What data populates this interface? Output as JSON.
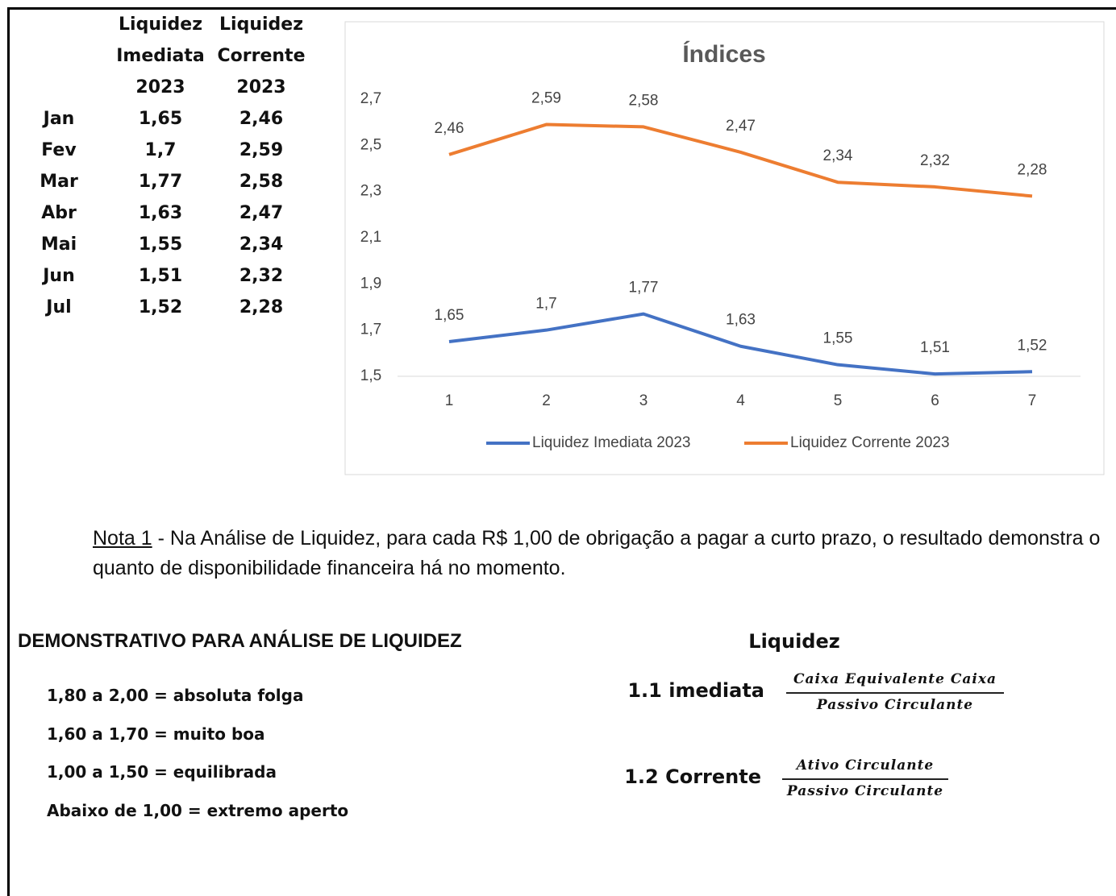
{
  "table": {
    "header": [
      [
        "Liquidez",
        "Imediata",
        "2023"
      ],
      [
        "Liquidez",
        "Corrente",
        "2023"
      ]
    ],
    "rows": [
      [
        "Jan",
        "1,65",
        "2,46"
      ],
      [
        "Fev",
        "1,7",
        "2,59"
      ],
      [
        "Mar",
        "1,77",
        "2,58"
      ],
      [
        "Abr",
        "1,63",
        "2,47"
      ],
      [
        "Mai",
        "1,55",
        "2,34"
      ],
      [
        "Jun",
        "1,51",
        "2,32"
      ],
      [
        "Jul",
        "1,52",
        "2,28"
      ]
    ]
  },
  "chart_data": {
    "type": "line",
    "title": "Índices",
    "categories": [
      "1",
      "2",
      "3",
      "4",
      "5",
      "6",
      "7"
    ],
    "series": [
      {
        "name": "Liquidez Imediata 2023",
        "color": "#4472c4",
        "values": [
          1.65,
          1.7,
          1.77,
          1.63,
          1.55,
          1.51,
          1.52
        ],
        "value_labels": [
          "1,65",
          "1,7",
          "1,77",
          "1,63",
          "1,55",
          "1,51",
          "1,52"
        ]
      },
      {
        "name": "Liquidez Corrente 2023",
        "color": "#ed7d31",
        "values": [
          2.46,
          2.59,
          2.58,
          2.47,
          2.34,
          2.32,
          2.28
        ],
        "value_labels": [
          "2,46",
          "2,59",
          "2,58",
          "2,47",
          "2,34",
          "2,32",
          "2,28"
        ]
      }
    ],
    "ylim": [
      1.5,
      2.7
    ],
    "yticks": [
      {
        "value": 1.5,
        "label": "1,5"
      },
      {
        "value": 1.7,
        "label": "1,7"
      },
      {
        "value": 1.9,
        "label": "1,9"
      },
      {
        "value": 2.1,
        "label": "2,1"
      },
      {
        "value": 2.3,
        "label": "2,3"
      },
      {
        "value": 2.5,
        "label": "2,5"
      },
      {
        "value": 2.7,
        "label": "2,7"
      }
    ],
    "grid": false,
    "legend": "bottom"
  },
  "note": {
    "label": "Nota 1",
    "text": " - Na Análise de Liquidez, para cada R$ 1,00 de obrigação a pagar a curto prazo, o resultado demonstra o quanto de disponibilidade financeira há no momento."
  },
  "scale": {
    "title": "DEMONSTRATIVO PARA ANÁLISE DE LIQUIDEZ",
    "items": [
      "1,80 a 2,00 = absoluta folga",
      "1,60 a 1,70 = muito boa",
      "1,00 a 1,50 = equilibrada",
      "Abaixo de 1,00 = extremo aperto"
    ]
  },
  "formulas": {
    "title": "Liquidez",
    "items": [
      {
        "label": "1.1 imediata",
        "numerator": "Caixa Equivalente Caixa",
        "denominator": "Passivo Circulante"
      },
      {
        "label": "1.2 Corrente",
        "numerator": "Ativo Circulante",
        "denominator": "Passivo Circulante"
      }
    ]
  }
}
